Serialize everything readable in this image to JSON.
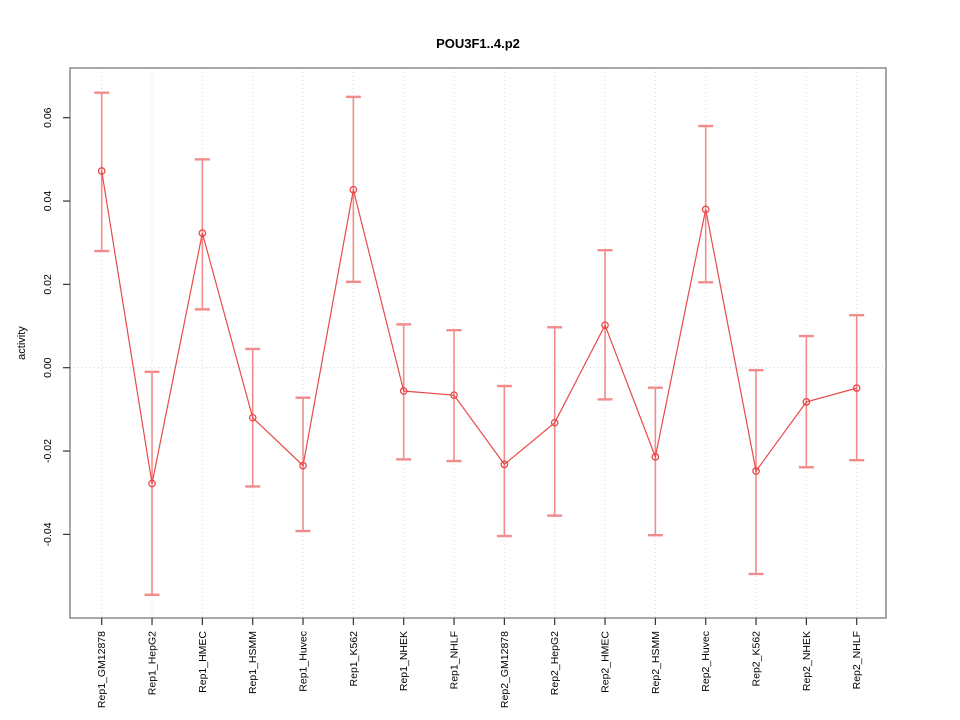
{
  "chart_data": {
    "type": "line",
    "title": "POU3F1..4.p2",
    "xlabel": "",
    "ylabel": "activity",
    "categories": [
      "Rep1_GM12878",
      "Rep1_HepG2",
      "Rep1_HMEC",
      "Rep1_HSMM",
      "Rep1_Huvec",
      "Rep1_K562",
      "Rep1_NHEK",
      "Rep1_NHLF",
      "Rep2_GM12878",
      "Rep2_HepG2",
      "Rep2_HMEC",
      "Rep2_HSMM",
      "Rep2_Huvec",
      "Rep2_K562",
      "Rep2_NHEK",
      "Rep2_NHLF"
    ],
    "series": [
      {
        "name": "activity",
        "values": [
          0.0472,
          -0.0278,
          0.0323,
          -0.012,
          -0.0235,
          0.0427,
          -0.0056,
          -0.0066,
          -0.0232,
          -0.0132,
          0.0102,
          -0.0214,
          0.038,
          -0.0248,
          -0.0082,
          -0.0049
        ],
        "error_high": [
          0.066,
          -0.001,
          0.05,
          0.0045,
          -0.0072,
          0.065,
          0.0104,
          0.009,
          -0.0044,
          0.0097,
          0.0282,
          -0.0048,
          0.058,
          -0.0006,
          0.0076,
          0.0126
        ],
        "error_low": [
          0.028,
          -0.0545,
          0.014,
          -0.0285,
          -0.0392,
          0.0206,
          -0.022,
          -0.0224,
          -0.0404,
          -0.0355,
          -0.0076,
          -0.0402,
          0.0205,
          -0.0495,
          -0.0239,
          -0.0222
        ]
      }
    ],
    "yticks": [
      0.06,
      0.04,
      0.02,
      0.0,
      -0.02,
      -0.04
    ],
    "ytick_labels": [
      "0.06",
      "0.04",
      "0.02",
      "0.00",
      "-0.02",
      "-0.04"
    ],
    "ylim": [
      -0.06,
      0.072
    ],
    "zero_reference_line": true,
    "grid": "vertical-dotted",
    "legend": "none",
    "point_style": "open-circle",
    "colors": {
      "background": "#ffffff",
      "series_line": "#e84a4a",
      "point_stroke": "#e84a4a",
      "error_bar": "#f28b8b",
      "gridline": "#dcdcdc",
      "zero_line": "#cccccc",
      "border": "#7a7a7a",
      "tick": "#333333",
      "text": "#000000"
    }
  }
}
